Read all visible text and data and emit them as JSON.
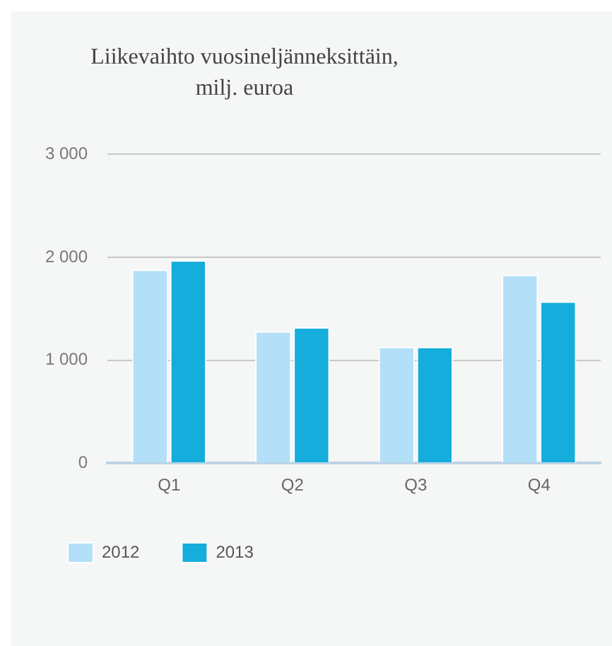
{
  "chart_data": {
    "type": "bar",
    "title": "Liikevaihto vuosineljänneksittäin,\nmilj. euroa",
    "categories": [
      "Q1",
      "Q2",
      "Q3",
      "Q4"
    ],
    "series": [
      {
        "name": "2012",
        "color": "#b3e0f8",
        "values": [
          1880,
          1280,
          1130,
          1830
        ]
      },
      {
        "name": "2013",
        "color": "#14addc",
        "values": [
          1970,
          1320,
          1130,
          1570
        ]
      }
    ],
    "ylim": [
      0,
      3000
    ],
    "yticks": [
      0,
      {
        "value": 1000,
        "label": "1 000"
      },
      {
        "value": 2000,
        "label": "2 000"
      },
      {
        "value": 3000,
        "label": "3 000"
      }
    ],
    "grid": "y",
    "legend": "bottom left"
  }
}
